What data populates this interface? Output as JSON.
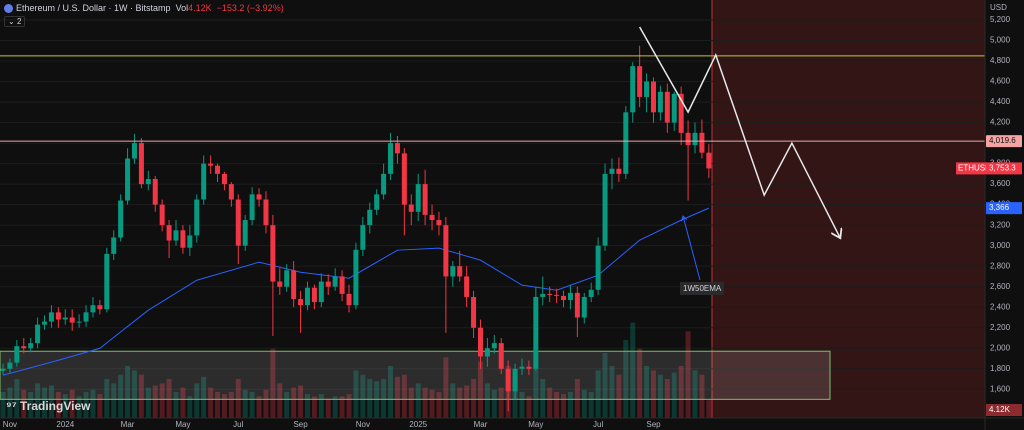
{
  "chart_data": {
    "type": "candlestick",
    "title": "Ethereum / U.S. Dollar · 1W · Bitstamp",
    "volume_title": "Vol",
    "change": {
      "value": -153.2,
      "label": "−153.2"
    },
    "change_pct": {
      "value": -3.92,
      "label": "(−3.92%)"
    },
    "indicator_count": "2",
    "currency": "USD",
    "watermark": "TradingView",
    "categories": [
      null,
      "Nov",
      null,
      null,
      null,
      null,
      null,
      null,
      null,
      "2024",
      null,
      null,
      null,
      null,
      null,
      null,
      null,
      null,
      "Mar",
      null,
      null,
      null,
      null,
      null,
      null,
      null,
      "May",
      null,
      null,
      null,
      null,
      null,
      null,
      null,
      "Jul",
      null,
      null,
      null,
      null,
      null,
      null,
      null,
      null,
      "Sep",
      null,
      null,
      null,
      null,
      null,
      null,
      null,
      null,
      "Nov",
      null,
      null,
      null,
      null,
      null,
      null,
      null,
      "2025",
      null,
      null,
      null,
      null,
      null,
      null,
      null,
      null,
      "Mar",
      null,
      null,
      null,
      null,
      null,
      null,
      null,
      "May",
      null,
      null,
      null,
      null,
      null,
      null,
      null,
      null,
      "Jul",
      null,
      null,
      null,
      null,
      null,
      null,
      null,
      "Sep",
      null,
      null,
      null,
      null,
      null,
      null,
      null,
      null
    ],
    "open": [
      1780,
      1800,
      1860,
      2020,
      2000,
      2050,
      2230,
      2260,
      2350,
      2280,
      2300,
      2250,
      2260,
      2350,
      2420,
      2380,
      2920,
      3080,
      3440,
      3850,
      4000,
      3600,
      3650,
      3400,
      3200,
      3050,
      3150,
      2980,
      3100,
      3450,
      3800,
      3780,
      3700,
      3600,
      3450,
      3000,
      3250,
      3500,
      3450,
      3200,
      2650,
      2600,
      2760,
      2480,
      2420,
      2590,
      2450,
      2650,
      2600,
      2700,
      2530,
      2420,
      2960,
      3200,
      3350,
      3500,
      3700,
      4000,
      3900,
      3400,
      3330,
      3600,
      3300,
      3250,
      3200,
      2700,
      2800,
      2700,
      2500,
      2200,
      1920,
      2000,
      2050,
      1800,
      1580,
      1800,
      1820,
      1800,
      2500,
      2530,
      2520,
      2510,
      2470,
      2540,
      2300,
      2500,
      2570,
      3000,
      3700,
      3750,
      3700,
      4300,
      4750,
      4450,
      4600,
      4300,
      4500,
      4200,
      4480,
      4100,
      3980,
      4100,
      3906.5
    ],
    "high": [
      1850,
      1900,
      2080,
      2100,
      2100,
      2300,
      2320,
      2420,
      2400,
      2380,
      2380,
      2330,
      2420,
      2500,
      2470,
      2980,
      3150,
      3500,
      3950,
      4090,
      4050,
      3730,
      3680,
      3450,
      3250,
      3250,
      3200,
      3200,
      3500,
      3880,
      3880,
      3800,
      3720,
      3620,
      3500,
      3300,
      3570,
      3560,
      3530,
      3300,
      2780,
      2820,
      2850,
      2560,
      2650,
      2620,
      2730,
      2720,
      2780,
      2760,
      2620,
      3030,
      3280,
      3420,
      3550,
      3800,
      4100,
      4070,
      3950,
      3500,
      3700,
      3740,
      3400,
      3330,
      3280,
      2850,
      2950,
      2800,
      2560,
      2280,
      2100,
      2130,
      2100,
      1880,
      1850,
      1900,
      1880,
      2600,
      2700,
      2600,
      2580,
      2560,
      2620,
      2600,
      2540,
      2640,
      3080,
      3800,
      3850,
      3860,
      4360,
      4790,
      4950,
      4680,
      4640,
      4560,
      4580,
      4500,
      4550,
      4220,
      4200,
      4230,
      3990
    ],
    "low": [
      1740,
      1760,
      1820,
      1950,
      1960,
      2000,
      2180,
      2200,
      2200,
      2230,
      2170,
      2200,
      2210,
      2300,
      2330,
      2350,
      2860,
      3040,
      3400,
      3800,
      3560,
      3540,
      3330,
      3140,
      2880,
      3000,
      2920,
      2900,
      3030,
      3400,
      3700,
      3620,
      3540,
      3380,
      2820,
      2950,
      3200,
      3380,
      3120,
      2120,
      2520,
      2550,
      2400,
      2150,
      2370,
      2380,
      2400,
      2520,
      2560,
      2460,
      2350,
      2380,
      2900,
      3120,
      3300,
      3450,
      3640,
      3800,
      3100,
      3200,
      3240,
      3200,
      3150,
      3100,
      2150,
      2600,
      2650,
      2400,
      2100,
      1800,
      1820,
      1950,
      1750,
      1385,
      1500,
      1740,
      1740,
      1780,
      2420,
      2450,
      2440,
      2400,
      2380,
      2110,
      2240,
      2450,
      2520,
      2950,
      3550,
      3620,
      3650,
      4200,
      4350,
      4300,
      4200,
      4220,
      4100,
      4120,
      3980,
      3440,
      3900,
      3850,
      3660
    ],
    "close": [
      1800,
      1860,
      2020,
      2000,
      2050,
      2230,
      2260,
      2350,
      2280,
      2300,
      2250,
      2260,
      2350,
      2420,
      2380,
      2920,
      3080,
      3440,
      3850,
      4000,
      3600,
      3650,
      3400,
      3200,
      3050,
      3150,
      2980,
      3100,
      3450,
      3800,
      3780,
      3700,
      3600,
      3450,
      3000,
      3250,
      3500,
      3450,
      3200,
      2650,
      2600,
      2760,
      2480,
      2420,
      2590,
      2450,
      2650,
      2600,
      2700,
      2530,
      2420,
      2960,
      3200,
      3350,
      3500,
      3700,
      4000,
      3900,
      3400,
      3330,
      3600,
      3300,
      3250,
      3200,
      2700,
      2800,
      2700,
      2500,
      2200,
      1920,
      2000,
      2050,
      1800,
      1580,
      1800,
      1820,
      1800,
      2500,
      2530,
      2520,
      2510,
      2470,
      2540,
      2300,
      2500,
      2570,
      3000,
      3700,
      3750,
      3700,
      4300,
      4750,
      4450,
      4600,
      4300,
      4500,
      4200,
      4480,
      4100,
      3980,
      4100,
      3906.5,
      3753.3
    ],
    "up_color": "#089981",
    "down_color": "#f23645",
    "last_price": {
      "symbol": "ETHUSD",
      "value": 3753.3,
      "label": "3,753.3"
    },
    "volume": {
      "values": [
        6000,
        7000,
        9000,
        6500,
        6000,
        8000,
        7000,
        7500,
        6000,
        5500,
        6500,
        5000,
        6000,
        6500,
        5500,
        9000,
        8000,
        10000,
        12000,
        11000,
        10000,
        7000,
        7500,
        8000,
        9000,
        6000,
        7000,
        5000,
        8000,
        9500,
        7000,
        6000,
        5500,
        6000,
        9000,
        6500,
        6000,
        5000,
        6500,
        16000,
        8000,
        6000,
        7000,
        7500,
        5500,
        5000,
        5500,
        4500,
        5000,
        5000,
        5500,
        11000,
        10000,
        9000,
        8500,
        9000,
        12000,
        9500,
        10000,
        7000,
        8000,
        7000,
        6500,
        6000,
        14000,
        8000,
        7000,
        7500,
        9000,
        13000,
        8000,
        6500,
        7000,
        12000,
        9000,
        6000,
        5000,
        14000,
        9000,
        7000,
        6000,
        5500,
        6000,
        9000,
        6500,
        6000,
        11000,
        15000,
        12000,
        10000,
        18000,
        22000,
        16000,
        12000,
        11000,
        10000,
        9000,
        10500,
        12000,
        20000,
        11000,
        10000,
        4120
      ],
      "ylim": [
        0,
        30000
      ],
      "last_label": "4.12K"
    },
    "ema": {
      "name": "1W50EMA",
      "color": "#2962ff",
      "x": [
        0,
        8,
        14,
        21,
        28,
        37,
        43,
        50,
        57,
        63,
        69,
        75,
        80,
        86,
        92,
        98,
        102
      ],
      "values": [
        1737,
        1883,
        2000,
        2371,
        2663,
        2839,
        2741,
        2683,
        2956,
        2976,
        2859,
        2615,
        2566,
        2712,
        3054,
        3249,
        3366
      ],
      "end_label": "3,366"
    },
    "levels": [
      {
        "value": 4850,
        "color": "#c8c23a"
      },
      {
        "value": 4019.6,
        "label": "4,019.6",
        "color": "#f5a3a3"
      }
    ],
    "zone": {
      "from": 1502,
      "to": 1971
    },
    "projection": {
      "x": [
        92,
        99,
        103,
        110,
        114,
        121
      ],
      "values": [
        5132,
        4302,
        4859,
        3493,
        4000,
        3073
      ],
      "color": "#e8e8e8"
    },
    "ylim": [
      1320,
      5395
    ],
    "yticks": [
      {
        "value": 1600,
        "label": "1,600"
      },
      {
        "value": 1800,
        "label": "1,800"
      },
      {
        "value": 2000,
        "label": "2,000"
      },
      {
        "value": 2200,
        "label": "2,200"
      },
      {
        "value": 2400,
        "label": "2,400"
      },
      {
        "value": 2600,
        "label": "2,600"
      },
      {
        "value": 2800,
        "label": "2,800"
      },
      {
        "value": 3000,
        "label": "3,000"
      },
      {
        "value": 3200,
        "label": "3,200"
      },
      {
        "value": 3400,
        "label": "3,400"
      },
      {
        "value": 3600,
        "label": "3,600"
      },
      {
        "value": 3800,
        "label": "3,800"
      },
      {
        "value": 4000,
        "label": "4,000"
      },
      {
        "value": 4200,
        "label": "4,200"
      },
      {
        "value": 4400,
        "label": "4,400"
      },
      {
        "value": 4600,
        "label": "4,600"
      },
      {
        "value": 4800,
        "label": "4,800"
      },
      {
        "value": 5000,
        "label": "5,000"
      },
      {
        "value": 5200,
        "label": "5,200"
      }
    ],
    "grid": true
  }
}
